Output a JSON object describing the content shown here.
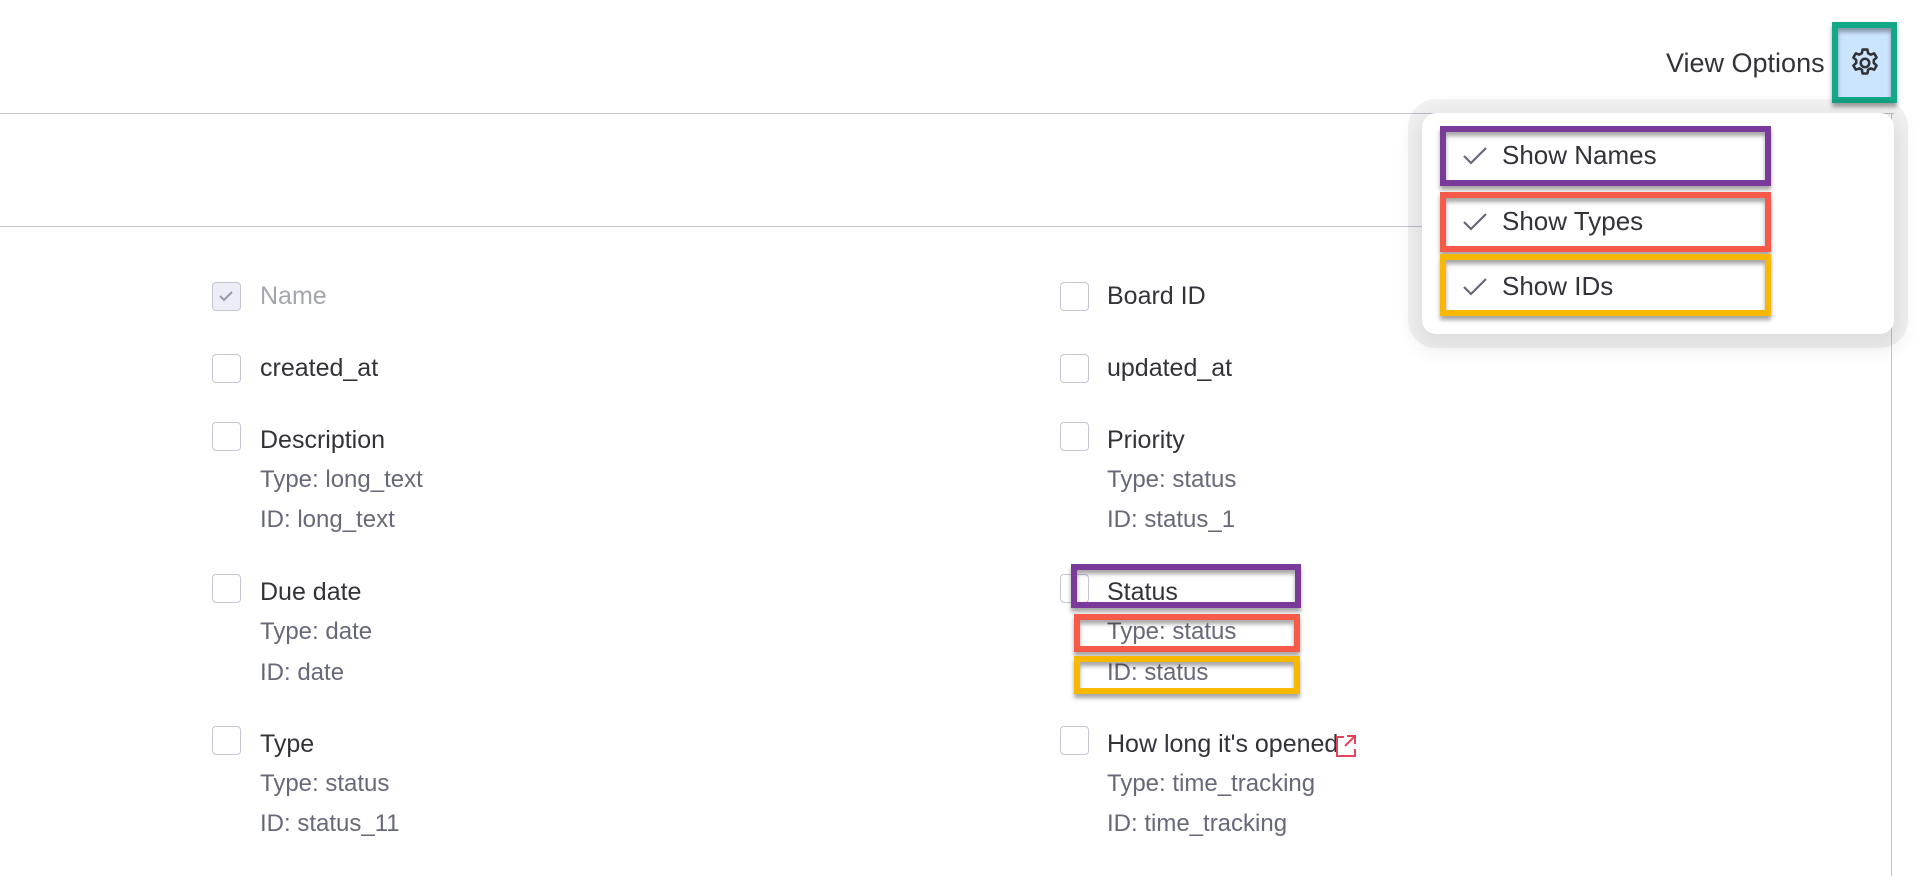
{
  "header": {
    "view_options_label": "View Options",
    "settings_icon": "gear-icon"
  },
  "menu": {
    "items": [
      {
        "label": "Show Names",
        "checked": true
      },
      {
        "label": "Show Types",
        "checked": true
      },
      {
        "label": "Show IDs",
        "checked": true
      }
    ]
  },
  "columns": {
    "left": [
      {
        "name": "Name",
        "checked": true,
        "disabled": true
      },
      {
        "name": "created_at",
        "checked": false
      },
      {
        "name": "Description",
        "type": "Type: long_text",
        "id": "ID: long_text",
        "checked": false
      },
      {
        "name": "Due date",
        "type": "Type: date",
        "id": "ID: date",
        "checked": false
      },
      {
        "name": "Type",
        "type": "Type: status",
        "id": "ID: status_11",
        "checked": false
      }
    ],
    "right": [
      {
        "name": "Board ID",
        "checked": false
      },
      {
        "name": "updated_at",
        "checked": false
      },
      {
        "name": "Priority",
        "type": "Type: status",
        "id": "ID: status_1",
        "checked": false
      },
      {
        "name": "Status",
        "type": "Type: status",
        "id": "ID: status",
        "checked": false
      },
      {
        "name": "How long it's opened",
        "type": "Type: time_tracking",
        "id": "ID: time_tracking",
        "checked": false,
        "icon": "external-link-icon"
      }
    ]
  },
  "annotation_colors": {
    "names": "#7b3a99",
    "types": "#f85a4a",
    "ids": "#f8b700",
    "settings": "#12a888"
  }
}
